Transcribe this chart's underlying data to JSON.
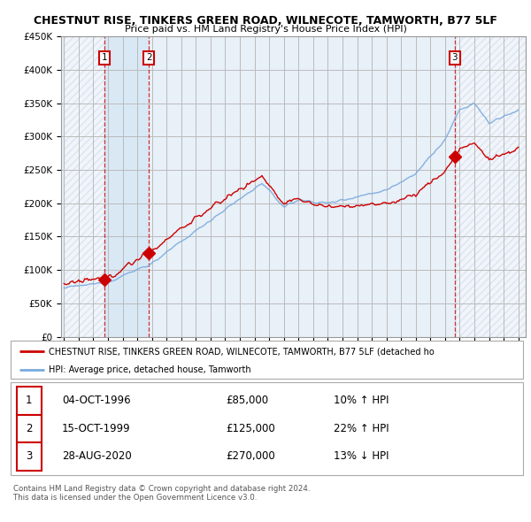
{
  "title": "CHESTNUT RISE, TINKERS GREEN ROAD, WILNECOTE, TAMWORTH, B77 5LF",
  "subtitle": "Price paid vs. HM Land Registry's House Price Index (HPI)",
  "sale_color": "#cc0000",
  "hpi_color": "#7aaadd",
  "grid_color": "#cccccc",
  "legend_label_red": "CHESTNUT RISE, TINKERS GREEN ROAD, WILNECOTE, TAMWORTH, B77 5LF (detached ho",
  "legend_label_blue": "HPI: Average price, detached house, Tamworth",
  "table_rows": [
    {
      "num": "1",
      "date": "04-OCT-1996",
      "price": "£85,000",
      "arrow": "↑",
      "pct": "10%"
    },
    {
      "num": "2",
      "date": "15-OCT-1999",
      "price": "£125,000",
      "arrow": "↑",
      "pct": "22%"
    },
    {
      "num": "3",
      "date": "28-AUG-2020",
      "price": "£270,000",
      "arrow": "↓",
      "pct": "13%"
    }
  ],
  "footnote": "Contains HM Land Registry data © Crown copyright and database right 2024.\nThis data is licensed under the Open Government Licence v3.0.",
  "sale_dates": [
    1996.75,
    1999.79,
    2020.65
  ],
  "sale_prices": [
    85000,
    125000,
    270000
  ],
  "sale_labels": [
    "1",
    "2",
    "3"
  ],
  "xmin": 1994,
  "xmax": 2025,
  "ylim": [
    0,
    450000
  ]
}
